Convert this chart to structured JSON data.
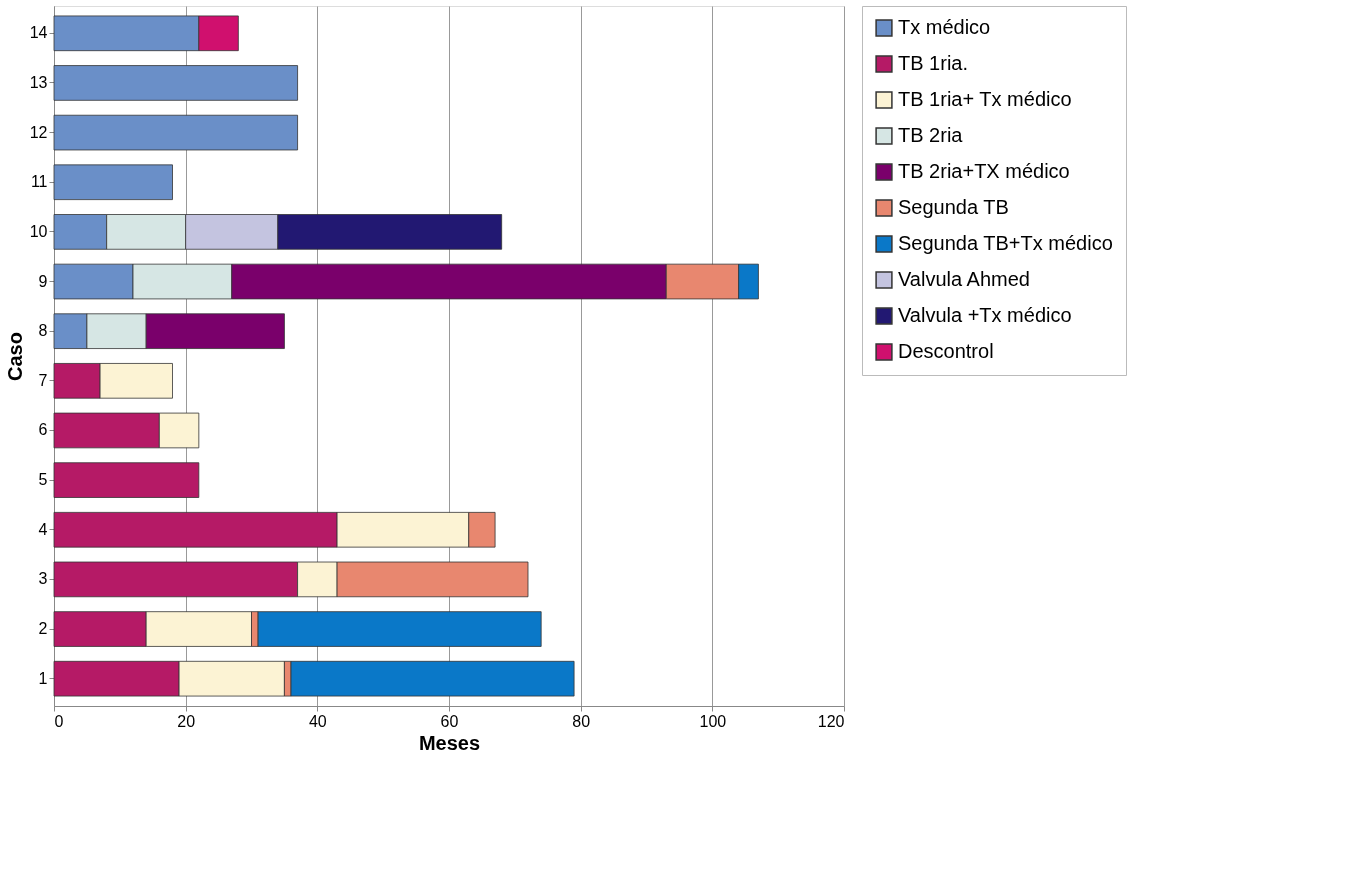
{
  "chart_data": {
    "type": "bar",
    "orientation": "horizontal",
    "stacked": true,
    "xlabel": "Meses",
    "ylabel": "Caso",
    "categories": [
      "14",
      "13",
      "12",
      "11",
      "10",
      "9",
      "8",
      "7",
      "6",
      "5",
      "4",
      "3",
      "2",
      "1"
    ],
    "series": [
      {
        "name": "Tx médico",
        "color": "#6a8fc8",
        "values": [
          22,
          37,
          37,
          18,
          8,
          12,
          5,
          null,
          null,
          null,
          null,
          null,
          null,
          null
        ]
      },
      {
        "name": "TB 1ria.",
        "color": "#b51a66",
        "values": [
          null,
          null,
          null,
          null,
          null,
          null,
          null,
          7,
          16,
          22,
          43,
          37,
          14,
          19
        ]
      },
      {
        "name": "TB 1ria+ Tx médico",
        "color": "#fcf3d4",
        "values": [
          null,
          null,
          null,
          null,
          null,
          null,
          null,
          11,
          6,
          null,
          20,
          6,
          16,
          16
        ]
      },
      {
        "name": "TB 2ria",
        "color": "#d6e6e4",
        "values": [
          null,
          null,
          null,
          null,
          12,
          15,
          9,
          null,
          null,
          null,
          null,
          null,
          null,
          null
        ]
      },
      {
        "name": "TB 2ria+TX médico",
        "color": "#7a006b",
        "values": [
          null,
          null,
          null,
          null,
          null,
          66,
          21,
          null,
          null,
          null,
          null,
          null,
          null,
          null
        ]
      },
      {
        "name": "Segunda TB",
        "color": "#e8876f",
        "values": [
          null,
          null,
          null,
          null,
          null,
          11,
          null,
          null,
          null,
          null,
          4,
          29,
          1,
          1
        ]
      },
      {
        "name": "Segunda TB+Tx médico",
        "color": "#0a78c8",
        "values": [
          null,
          null,
          null,
          null,
          null,
          3,
          null,
          null,
          null,
          null,
          null,
          null,
          43,
          43
        ]
      },
      {
        "name": "Valvula Ahmed",
        "color": "#c4c4e0",
        "values": [
          null,
          null,
          null,
          null,
          14,
          null,
          null,
          null,
          null,
          null,
          null,
          null,
          null,
          null
        ]
      },
      {
        "name": "Valvula +Tx médico",
        "color": "#221872",
        "values": [
          null,
          null,
          null,
          null,
          34,
          null,
          null,
          null,
          null,
          null,
          null,
          null,
          null,
          null
        ]
      },
      {
        "name": "Descontrol",
        "color": "#d0106e",
        "values": [
          6,
          null,
          null,
          null,
          null,
          null,
          null,
          null,
          null,
          null,
          null,
          null,
          null,
          null
        ]
      }
    ],
    "xlim": [
      0,
      120
    ],
    "xticks": [
      0,
      20,
      40,
      60,
      80,
      100,
      120
    ],
    "grid": "x",
    "legend": "right"
  }
}
